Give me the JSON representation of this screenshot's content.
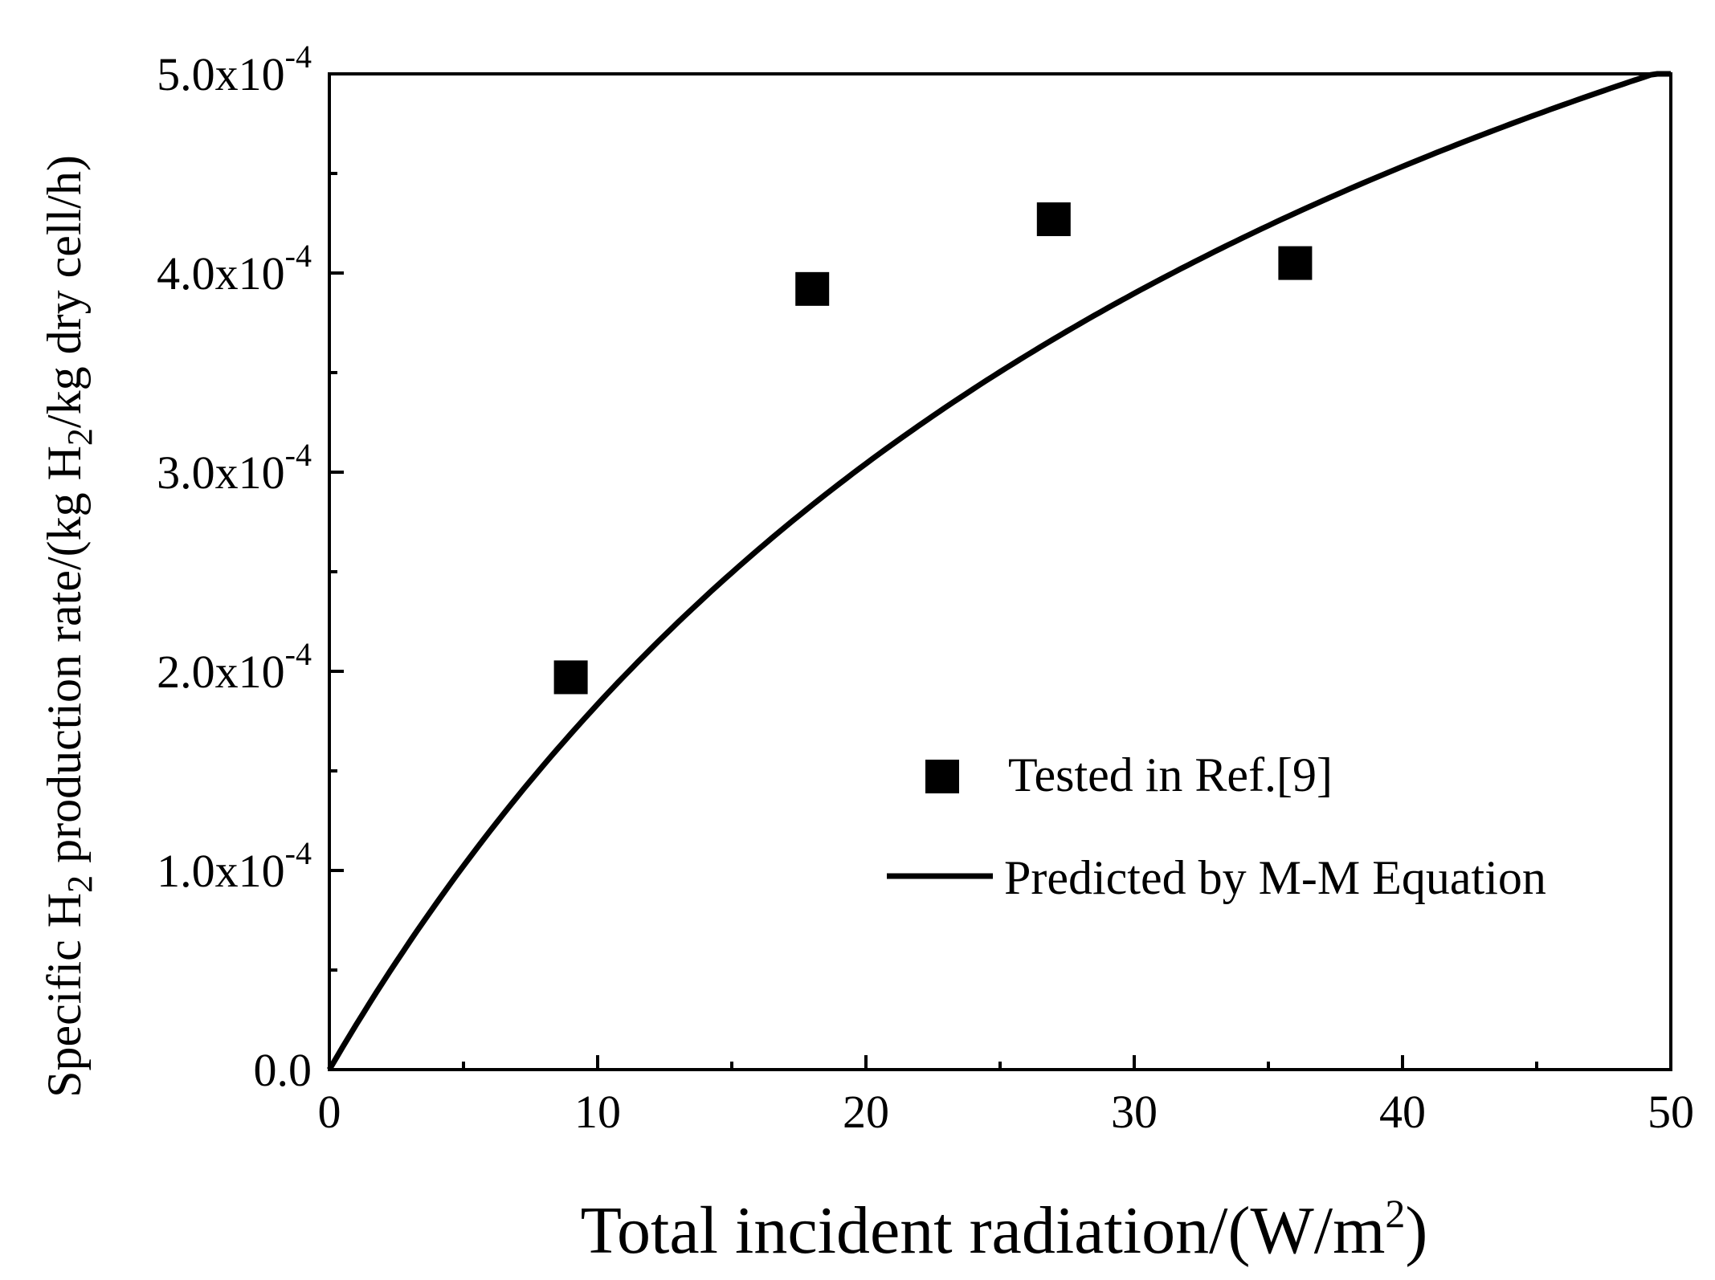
{
  "chart_data": {
    "type": "scatter",
    "xlabel": "Total incident radiation/(W/m",
    "xlabel_sup": "2",
    "xlabel_end": ")",
    "ylabel_parts": [
      "Specific H",
      "2",
      " production rate/(kg H",
      "2",
      "/kg dry cell/h)"
    ],
    "xlim": [
      0,
      50
    ],
    "ylim": [
      0,
      0.0005
    ],
    "x_ticks": [
      0,
      10,
      20,
      30,
      40,
      50
    ],
    "x_tick_labels": [
      "0",
      "10",
      "20",
      "30",
      "40",
      "50"
    ],
    "x_minor_ticks": [
      5,
      15,
      25,
      35,
      45
    ],
    "y_ticks": [
      0,
      0.0001,
      0.0002,
      0.0003,
      0.0004,
      0.0005
    ],
    "y_tick_labels": [
      {
        "base": "0.0",
        "exp": ""
      },
      {
        "base": "1.0x10",
        "exp": "-4"
      },
      {
        "base": "2.0x10",
        "exp": "-4"
      },
      {
        "base": "3.0x10",
        "exp": "-4"
      },
      {
        "base": "4.0x10",
        "exp": "-4"
      },
      {
        "base": "5.0x10",
        "exp": "-4"
      }
    ],
    "y_minor_ticks": [
      5e-05,
      0.00015,
      0.00025,
      0.00035,
      0.00045
    ],
    "series": [
      {
        "name": "Tested in Ref.[9]",
        "kind": "scatter",
        "marker": "square",
        "x": [
          9,
          18,
          27,
          36
        ],
        "y": [
          0.000197,
          0.000392,
          0.000427,
          0.000405
        ]
      },
      {
        "name": "Predicted by M-M Equation",
        "kind": "line",
        "vmax": 0.00089,
        "km": 38.5
      }
    ],
    "legend": {
      "position": "lower-right",
      "entries": [
        "Tested in Ref.[9]",
        "Predicted by M-M Equation"
      ]
    },
    "colors": {
      "axis": "#000000",
      "marker": "#000000",
      "line": "#000000"
    }
  }
}
